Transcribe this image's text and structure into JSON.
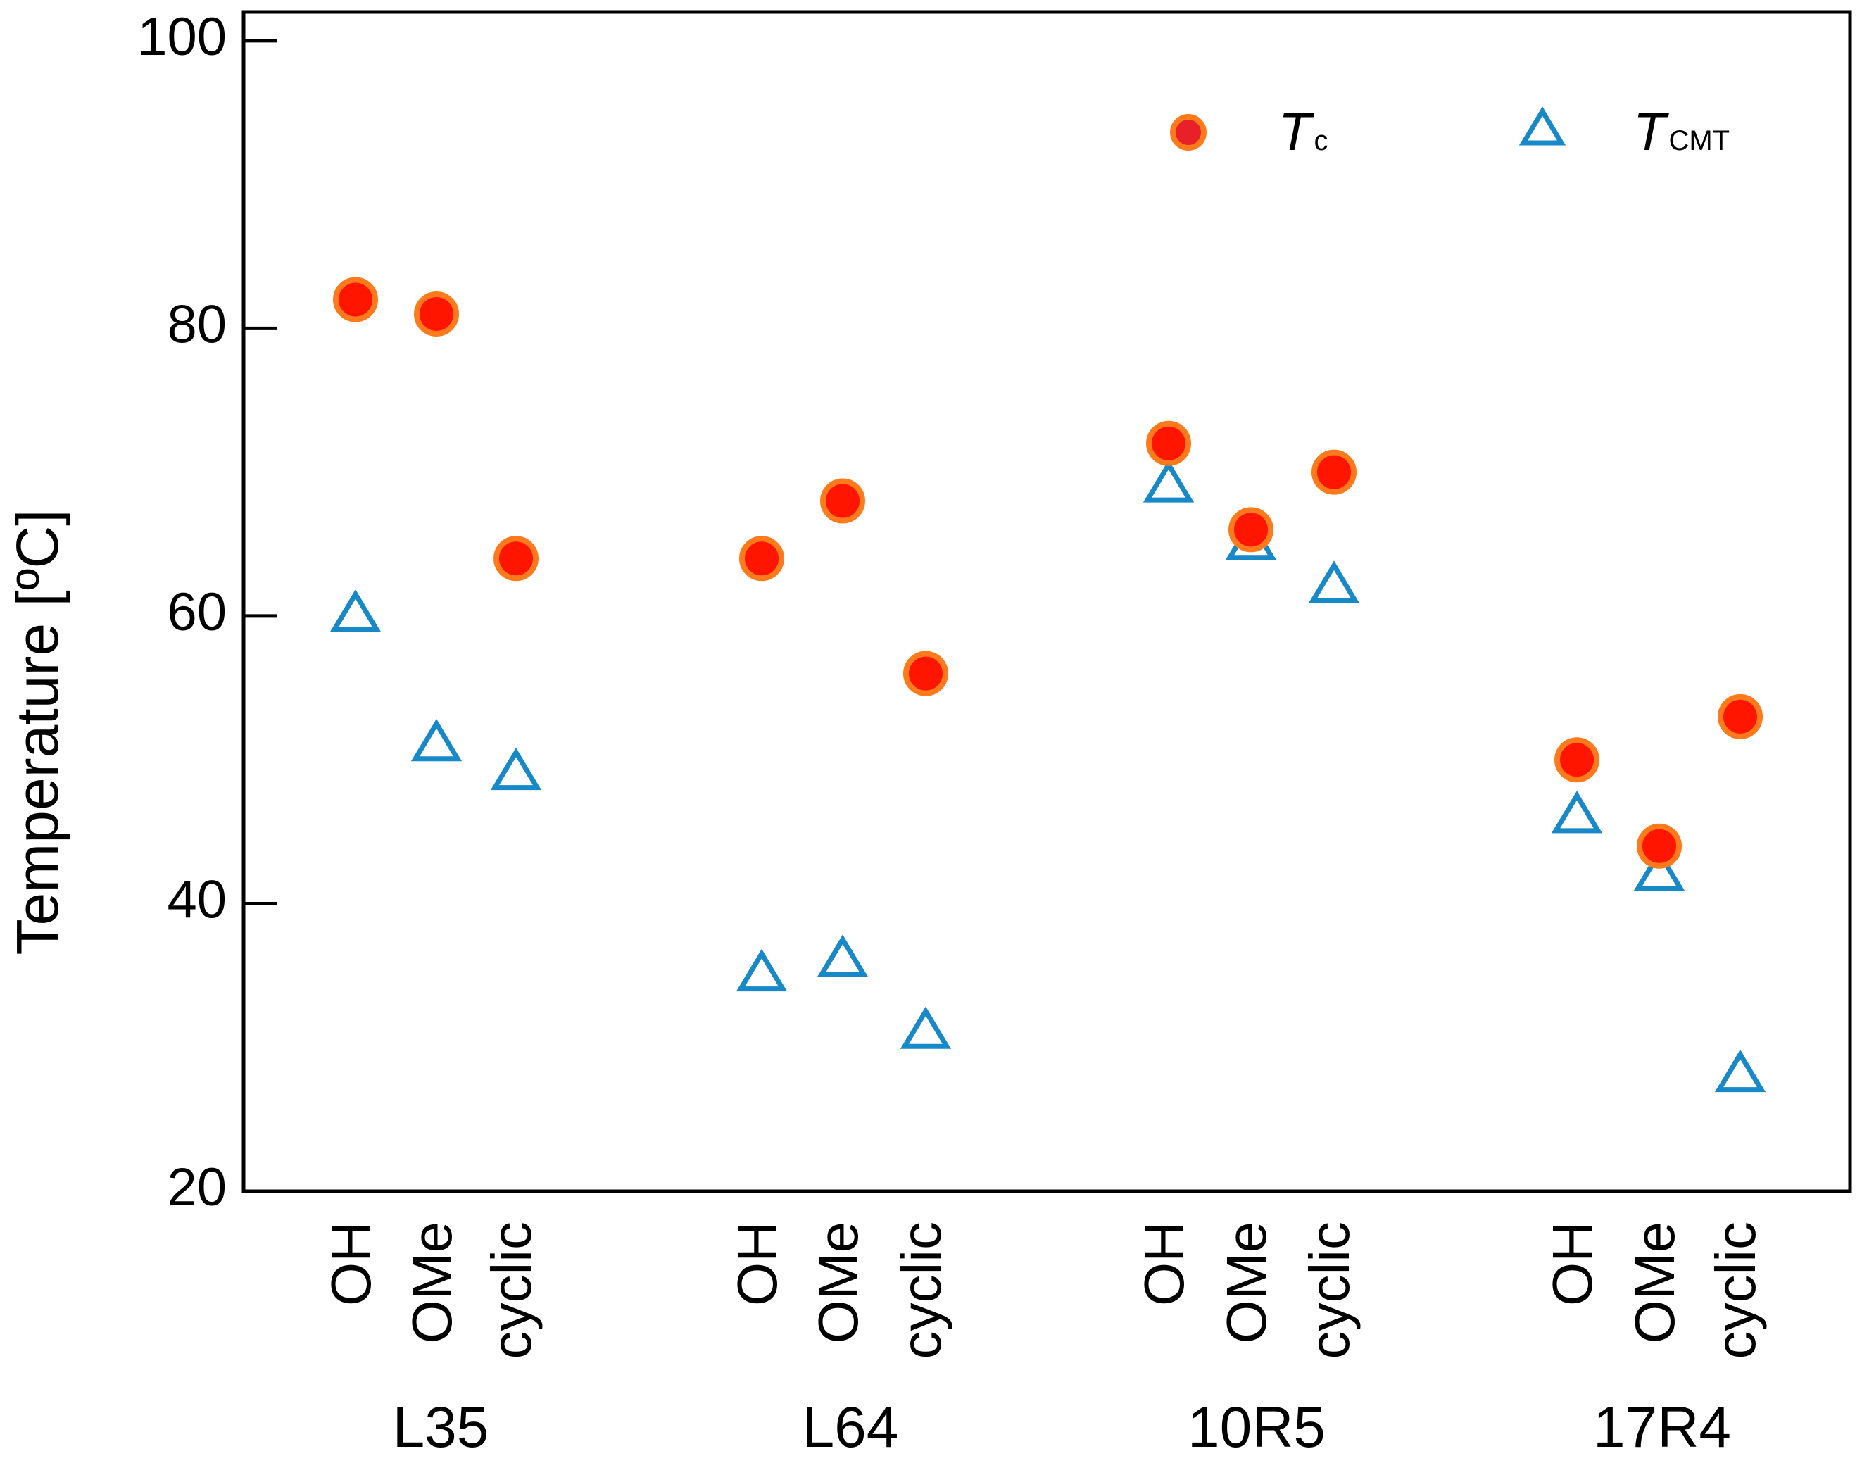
{
  "chart_data": {
    "type": "scatter",
    "title": "",
    "xlabel": "",
    "ylabel": "Temperature [ºC]",
    "ylim": [
      20,
      102
    ],
    "yticks": [
      20,
      40,
      60,
      80,
      100
    ],
    "grid": false,
    "legend_position": "top-right",
    "groups": [
      {
        "label": "L35",
        "variants": [
          "OH",
          "OMe",
          "cyclic"
        ]
      },
      {
        "label": "L64",
        "variants": [
          "OH",
          "OMe",
          "cyclic"
        ]
      },
      {
        "label": "10R5",
        "variants": [
          "OH",
          "OMe",
          "cyclic"
        ]
      },
      {
        "label": "17R4",
        "variants": [
          "OH",
          "OMe",
          "cyclic"
        ]
      }
    ],
    "series": [
      {
        "name": "Tc",
        "legend_main": "T",
        "legend_sub": "c",
        "marker": "circle",
        "fill_color": "#ff1500",
        "edge_color": "#ff7a1a",
        "values": [
          82,
          81,
          64,
          64,
          68,
          56,
          72,
          66,
          70,
          50,
          44,
          53
        ]
      },
      {
        "name": "TCMT",
        "legend_main": "T",
        "legend_sub": "CMT",
        "marker": "triangle-open",
        "edge_color": "#1788c8",
        "values": [
          60,
          51,
          49,
          35,
          36,
          31,
          69,
          65,
          62,
          46,
          42,
          28
        ]
      }
    ]
  }
}
